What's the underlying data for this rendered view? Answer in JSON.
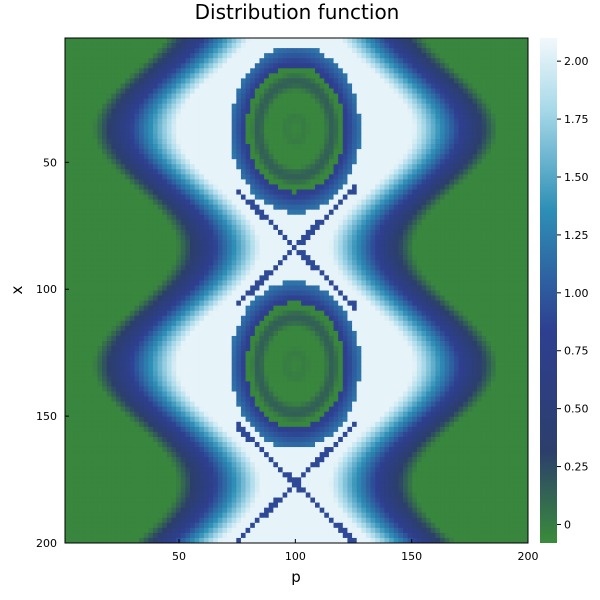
{
  "chart_data": {
    "type": "heatmap",
    "title": "Distribution function",
    "xlabel": "p",
    "ylabel": "x",
    "xlim": [
      1,
      200
    ],
    "ylim": [
      1,
      200
    ],
    "y_axis_inverted": true,
    "xticks": [
      50,
      100,
      150,
      200
    ],
    "yticks": [
      50,
      100,
      150,
      200
    ],
    "colorbar": {
      "min": -0.08,
      "max": 2.1,
      "ticks": [
        "0",
        "0.25",
        "0.50",
        "0.75",
        "1.00",
        "1.25",
        "1.50",
        "1.75",
        "2.00"
      ],
      "tick_values": [
        0,
        0.25,
        0.5,
        0.75,
        1.0,
        1.25,
        1.5,
        1.75,
        2.0
      ],
      "colors": [
        "#3a8c3a",
        "#2c3f6b",
        "#2e3f91",
        "#2e8fb6",
        "#a8d9e9",
        "#f2f8fc"
      ],
      "color_stops": [
        0,
        0.18,
        0.42,
        0.66,
        0.86,
        1
      ]
    },
    "structures": {
      "vortex_centers_x": [
        37,
        130
      ],
      "vortex_center_p": 100,
      "vortex_radius_p": 28,
      "vortex_radius_x": 33,
      "vortex_level": -0.05,
      "beam_center_p": 100,
      "beam_halfwidth_p": 55,
      "beam_modulation_p": 18,
      "beam_period_x": 93,
      "beam_level": 2.05,
      "background_level": -0.05
    },
    "grid": false,
    "legend": "none"
  }
}
